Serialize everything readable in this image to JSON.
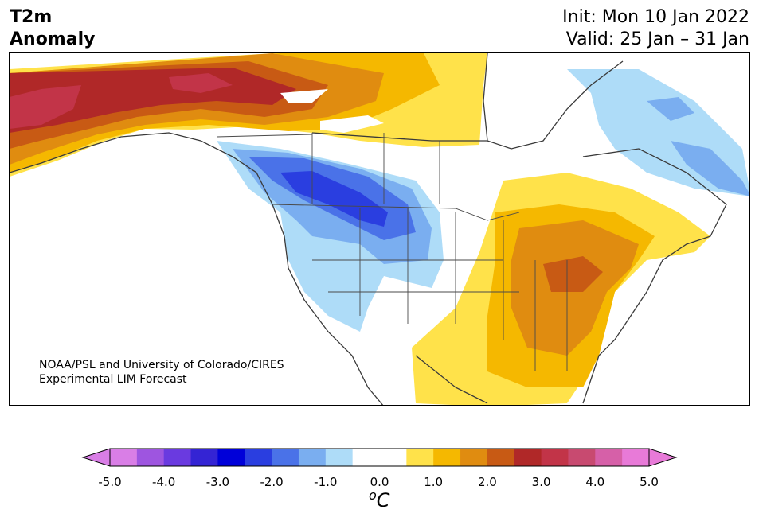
{
  "title": {
    "line1": "T2m",
    "line2": "Anomaly"
  },
  "run": {
    "init": "Init: Mon 10 Jan 2022",
    "valid": "Valid: 25 Jan – 31 Jan"
  },
  "credit": {
    "line1": "NOAA/PSL and University of Colorado/CIRES",
    "line2": "Experimental LIM Forecast"
  },
  "colorbar": {
    "units_base": "C",
    "units_sup": "o",
    "tick_labels": [
      "-5.0",
      "-4.0",
      "-3.0",
      "-2.0",
      "-1.0",
      "0.0",
      "1.0",
      "2.0",
      "3.0",
      "4.0",
      "5.0"
    ],
    "colors": [
      "#d97ee6",
      "#9e55e0",
      "#6a3ae0",
      "#3424d4",
      "#0000d9",
      "#2a3ee0",
      "#4a72e8",
      "#7aaef0",
      "#aedcf8",
      "#ffffff",
      "#ffffff",
      "#ffe24a",
      "#f5b800",
      "#e08c10",
      "#c85a14",
      "#b02828",
      "#c23448",
      "#c84a70",
      "#d660a8",
      "#e87ad8"
    ],
    "under_color": "#d97ee6",
    "over_color": "#e87ad8"
  },
  "map": {
    "region": "North America",
    "colors": {
      "cold1": "#aedcf8",
      "cold2": "#7aaef0",
      "cold3": "#4a72e8",
      "cold4": "#2a3ee0",
      "warm1": "#ffe24a",
      "warm2": "#f5b800",
      "warm3": "#e08c10",
      "warm4": "#c85a14",
      "warm5": "#b02828",
      "warm6": "#c23448"
    }
  }
}
